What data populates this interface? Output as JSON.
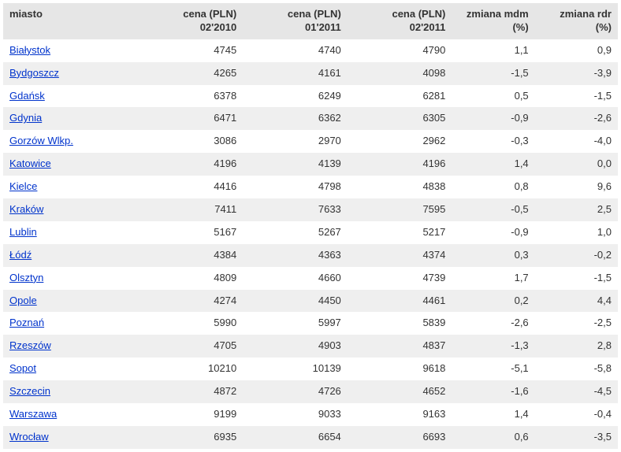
{
  "table": {
    "type": "table",
    "background_color": "#ffffff",
    "row_stripe_color": "#efefef",
    "header_bg": "#e6e6e6",
    "text_color": "#333333",
    "link_color": "#0033cc",
    "font_size_pt": 10,
    "column_widths_pct": [
      22,
      17,
      17,
      17,
      13.5,
      13.5
    ],
    "columns": [
      {
        "key": "miasto",
        "label_line1": "miasto",
        "label_line2": "",
        "align": "left"
      },
      {
        "key": "c2010_02",
        "label_line1": "cena (PLN)",
        "label_line2": "02'2010",
        "align": "right"
      },
      {
        "key": "c2011_01",
        "label_line1": "cena (PLN)",
        "label_line2": "01'2011",
        "align": "right"
      },
      {
        "key": "c2011_02",
        "label_line1": "cena (PLN)",
        "label_line2": "02'2011",
        "align": "right"
      },
      {
        "key": "mdm",
        "label_line1": "zmiana mdm",
        "label_line2": "(%)",
        "align": "right"
      },
      {
        "key": "rdr",
        "label_line1": "zmiana rdr",
        "label_line2": "(%)",
        "align": "right"
      }
    ],
    "rows": [
      {
        "miasto": "Białystok",
        "c2010_02": "4745",
        "c2011_01": "4740",
        "c2011_02": "4790",
        "mdm": "1,1",
        "rdr": "0,9"
      },
      {
        "miasto": "Bydgoszcz",
        "c2010_02": "4265",
        "c2011_01": "4161",
        "c2011_02": "4098",
        "mdm": "-1,5",
        "rdr": "-3,9"
      },
      {
        "miasto": "Gdańsk",
        "c2010_02": "6378",
        "c2011_01": "6249",
        "c2011_02": "6281",
        "mdm": "0,5",
        "rdr": "-1,5"
      },
      {
        "miasto": "Gdynia",
        "c2010_02": "6471",
        "c2011_01": "6362",
        "c2011_02": "6305",
        "mdm": "-0,9",
        "rdr": "-2,6"
      },
      {
        "miasto": "Gorzów Wlkp.",
        "c2010_02": "3086",
        "c2011_01": "2970",
        "c2011_02": "2962",
        "mdm": "-0,3",
        "rdr": "-4,0"
      },
      {
        "miasto": "Katowice",
        "c2010_02": "4196",
        "c2011_01": "4139",
        "c2011_02": "4196",
        "mdm": "1,4",
        "rdr": "0,0"
      },
      {
        "miasto": "Kielce",
        "c2010_02": "4416",
        "c2011_01": "4798",
        "c2011_02": "4838",
        "mdm": "0,8",
        "rdr": "9,6"
      },
      {
        "miasto": "Kraków",
        "c2010_02": "7411",
        "c2011_01": "7633",
        "c2011_02": "7595",
        "mdm": "-0,5",
        "rdr": "2,5"
      },
      {
        "miasto": "Lublin",
        "c2010_02": "5167",
        "c2011_01": "5267",
        "c2011_02": "5217",
        "mdm": "-0,9",
        "rdr": "1,0"
      },
      {
        "miasto": "Łódź",
        "c2010_02": "4384",
        "c2011_01": "4363",
        "c2011_02": "4374",
        "mdm": "0,3",
        "rdr": "-0,2"
      },
      {
        "miasto": "Olsztyn",
        "c2010_02": "4809",
        "c2011_01": "4660",
        "c2011_02": "4739",
        "mdm": "1,7",
        "rdr": "-1,5"
      },
      {
        "miasto": "Opole",
        "c2010_02": "4274",
        "c2011_01": "4450",
        "c2011_02": "4461",
        "mdm": "0,2",
        "rdr": "4,4"
      },
      {
        "miasto": "Poznań",
        "c2010_02": "5990",
        "c2011_01": "5997",
        "c2011_02": "5839",
        "mdm": "-2,6",
        "rdr": "-2,5"
      },
      {
        "miasto": "Rzeszów",
        "c2010_02": "4705",
        "c2011_01": "4903",
        "c2011_02": "4837",
        "mdm": "-1,3",
        "rdr": "2,8"
      },
      {
        "miasto": "Sopot",
        "c2010_02": "10210",
        "c2011_01": "10139",
        "c2011_02": "9618",
        "mdm": "-5,1",
        "rdr": "-5,8"
      },
      {
        "miasto": "Szczecin",
        "c2010_02": "4872",
        "c2011_01": "4726",
        "c2011_02": "4652",
        "mdm": "-1,6",
        "rdr": "-4,5"
      },
      {
        "miasto": "Warszawa",
        "c2010_02": "9199",
        "c2011_01": "9033",
        "c2011_02": "9163",
        "mdm": "1,4",
        "rdr": "-0,4"
      },
      {
        "miasto": "Wrocław",
        "c2010_02": "6935",
        "c2011_01": "6654",
        "c2011_02": "6693",
        "mdm": "0,6",
        "rdr": "-3,5"
      }
    ]
  }
}
